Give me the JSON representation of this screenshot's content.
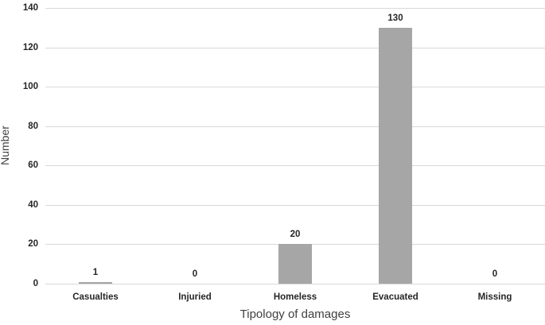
{
  "chart_data": {
    "type": "bar",
    "categories": [
      "Casualties",
      "Injuried",
      "Homeless",
      "Evacuated",
      "Missing"
    ],
    "values": [
      1,
      0,
      20,
      130,
      0
    ],
    "title": "",
    "xlabel": "Tipology of damages",
    "ylabel": "Number",
    "ylim": [
      0,
      140
    ],
    "ytick_step": 20,
    "yticks": [
      0,
      20,
      40,
      60,
      80,
      100,
      120,
      140
    ],
    "grid": true,
    "legend": "none",
    "data_labels": true,
    "colors": {
      "bar": "#a6a6a6",
      "gridline": "#d9d9d9",
      "axis_line": "#d9d9d9",
      "tick_text": "#262626",
      "axis_title_text": "#3f3f3f",
      "background": "#ffffff"
    }
  }
}
